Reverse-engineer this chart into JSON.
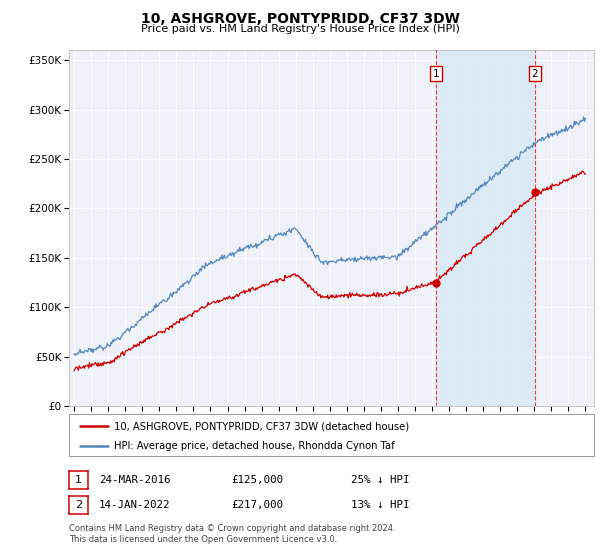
{
  "title": "10, ASHGROVE, PONTYPRIDD, CF37 3DW",
  "subtitle": "Price paid vs. HM Land Registry's House Price Index (HPI)",
  "legend_red": "10, ASHGROVE, PONTYPRIDD, CF37 3DW (detached house)",
  "legend_blue": "HPI: Average price, detached house, Rhondda Cynon Taf",
  "sale1_date": "24-MAR-2016",
  "sale1_price": "£125,000",
  "sale1_note": "25% ↓ HPI",
  "sale2_date": "14-JAN-2022",
  "sale2_price": "£217,000",
  "sale2_note": "13% ↓ HPI",
  "footnote1": "Contains HM Land Registry data © Crown copyright and database right 2024.",
  "footnote2": "This data is licensed under the Open Government Licence v3.0.",
  "vline1_x": 2016.23,
  "vline2_x": 2022.04,
  "sale1_marker_x": 2016.23,
  "sale1_marker_y": 125000,
  "sale2_marker_x": 2022.04,
  "sale2_marker_y": 217000,
  "ylim": [
    0,
    360000
  ],
  "xlim": [
    1994.7,
    2025.5
  ],
  "red_color": "#cc0000",
  "blue_color": "#5588bb",
  "blue_fill_color": "#d8e8f5",
  "vline_color": "#dd4444",
  "background_color": "#ffffff",
  "plot_bg_color": "#eef2f8"
}
